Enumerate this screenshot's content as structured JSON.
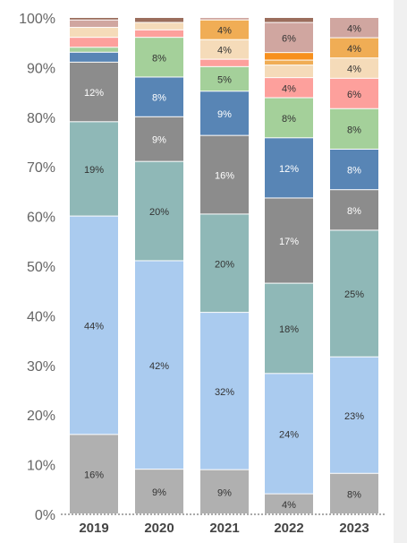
{
  "colors": {
    "gray": "#b0b0b0",
    "light_blue": "#aacbef",
    "teal": "#8fb8b7",
    "dark_gray": "#8c8c8c",
    "blue": "#5885b5",
    "green": "#a4d09a",
    "pink": "#fda09c",
    "beige": "#f5dbb9",
    "orange": "#f0ad55",
    "dark_orange": "#f7901e",
    "rose": "#d0a6a0",
    "brown": "#9b6e5d"
  },
  "chart_data": {
    "type": "bar",
    "stacked": true,
    "normalized": true,
    "categories": [
      "2019",
      "2020",
      "2021",
      "2022",
      "2023"
    ],
    "ylim": [
      0,
      100
    ],
    "yticks": [
      0,
      10,
      20,
      30,
      40,
      50,
      60,
      70,
      80,
      90,
      100
    ],
    "ytick_labels": [
      "0%",
      "10%",
      "20%",
      "30%",
      "40%",
      "50%",
      "60%",
      "70%",
      "80%",
      "90%",
      "100%"
    ],
    "grid": false,
    "legend": "none",
    "series": [
      {
        "color": "gray",
        "values": [
          16,
          9,
          9,
          4,
          8
        ],
        "labels": [
          "16%",
          "9%",
          "9%",
          "4%",
          "8%"
        ]
      },
      {
        "color": "light_blue",
        "values": [
          44,
          42,
          32,
          24,
          23
        ],
        "labels": [
          "44%",
          "42%",
          "32%",
          "24%",
          "23%"
        ]
      },
      {
        "color": "teal",
        "values": [
          19,
          20,
          20,
          18,
          25
        ],
        "labels": [
          "19%",
          "20%",
          "20%",
          "18%",
          "25%"
        ]
      },
      {
        "color": "dark_gray",
        "values": [
          12,
          9,
          16,
          17,
          8
        ],
        "labels": [
          "12%",
          "9%",
          "16%",
          "17%",
          "8%"
        ]
      },
      {
        "color": "blue",
        "values": [
          2,
          8,
          9,
          12,
          8
        ],
        "labels": [
          "",
          "8%",
          "9%",
          "12%",
          "8%"
        ]
      },
      {
        "color": "green",
        "values": [
          1,
          8,
          5,
          8,
          8
        ],
        "labels": [
          "",
          "8%",
          "5%",
          "8%",
          "8%"
        ]
      },
      {
        "color": "pink",
        "values": [
          2,
          1.5,
          1.5,
          4,
          6
        ],
        "labels": [
          "",
          "",
          "",
          "4%",
          "6%"
        ]
      },
      {
        "color": "beige",
        "values": [
          2,
          1.5,
          4,
          2.5,
          4
        ],
        "labels": [
          "",
          "",
          "4%",
          "",
          "4%"
        ]
      },
      {
        "color": "orange",
        "values": [
          0,
          0,
          4,
          1,
          4
        ],
        "labels": [
          "",
          "",
          "4%",
          "",
          "4%"
        ]
      },
      {
        "color": "dark_orange",
        "values": [
          0,
          0,
          0,
          1.5,
          0
        ],
        "labels": [
          "",
          "",
          "",
          "",
          ""
        ]
      },
      {
        "color": "rose",
        "values": [
          1.5,
          0,
          0.5,
          6,
          4
        ],
        "labels": [
          "",
          "",
          "",
          "6%",
          "4%"
        ]
      },
      {
        "color": "brown",
        "values": [
          0.5,
          1,
          0,
          1,
          0
        ],
        "labels": [
          "",
          "",
          "",
          "",
          ""
        ]
      }
    ]
  }
}
